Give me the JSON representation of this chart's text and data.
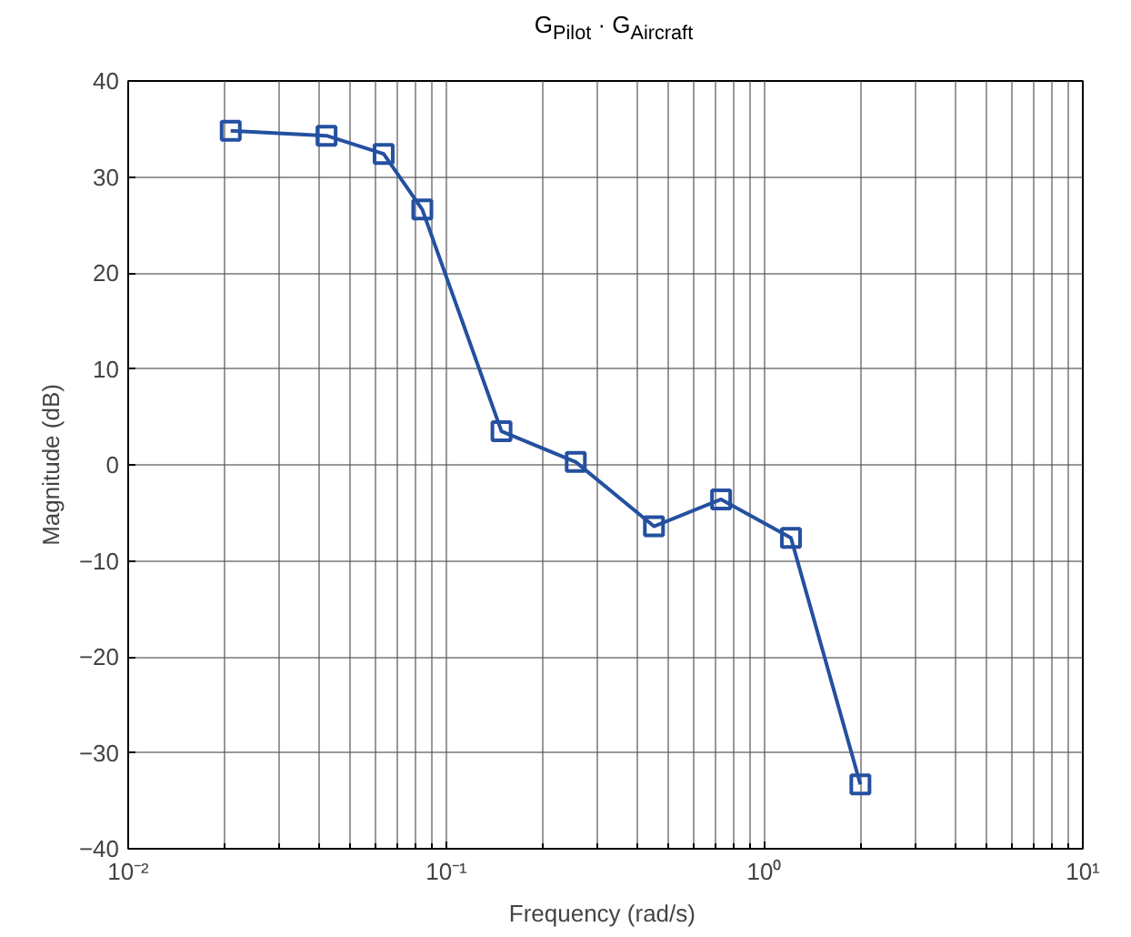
{
  "chart_data": {
    "type": "line",
    "title": "G$_{Pilot}$ · G$_{Aircraft}$",
    "xlabel": "Frequency  (rad/s)",
    "ylabel": "Magnitude (dB)",
    "x": [
      0.021,
      0.042,
      0.0635,
      0.084,
      0.149,
      0.255,
      0.449,
      0.73,
      1.21,
      2.0
    ],
    "series": [
      {
        "color": "#2450a0",
        "values": [
          34.8,
          34.3,
          32.4,
          26.6,
          3.5,
          0.3,
          -6.4,
          -3.6,
          -7.6,
          -33.3
        ]
      }
    ],
    "log": "x",
    "xlim": [
      0.01,
      10
    ],
    "xticks": [
      {
        "value": 0.01,
        "label": "10⁻²"
      },
      {
        "value": 0.1,
        "label": "10⁻¹"
      },
      {
        "value": 1,
        "label": "10⁰"
      },
      {
        "value": 10,
        "label": "10¹"
      }
    ],
    "ylim": [
      -40,
      40
    ],
    "yticks": [
      -40,
      -30,
      -20,
      -10,
      0,
      10,
      20,
      30,
      40
    ],
    "grid": true,
    "marker": "square",
    "line_style": "solid"
  }
}
